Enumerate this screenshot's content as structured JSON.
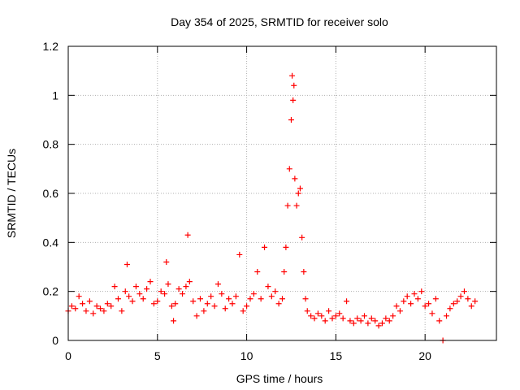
{
  "chart_data": {
    "type": "scatter",
    "title": "Day 354 of 2025, SRMTID for receiver solo",
    "xlabel": "GPS time / hours",
    "ylabel": "SRMTID / TECUs",
    "xlim": [
      0,
      24
    ],
    "ylim": [
      0,
      1.2
    ],
    "xticks": [
      0,
      5,
      10,
      15,
      20
    ],
    "xtick_labels": [
      "0",
      "5",
      "10",
      "15",
      "20"
    ],
    "yticks": [
      0,
      0.2,
      0.4,
      0.6,
      0.8,
      1.0,
      1.2
    ],
    "ytick_labels": [
      "0",
      "0.2",
      "0.4",
      "0.6",
      "0.8",
      "1",
      "1.2"
    ],
    "grid": true,
    "marker": "+",
    "color": "#ff0000",
    "series": [
      {
        "name": "SRMTID",
        "x": [
          0.0,
          0.2,
          0.4,
          0.6,
          0.8,
          1.0,
          1.2,
          1.4,
          1.6,
          1.8,
          2.0,
          2.2,
          2.4,
          2.6,
          2.8,
          3.0,
          3.2,
          3.3,
          3.4,
          3.6,
          3.8,
          4.0,
          4.2,
          4.4,
          4.6,
          4.8,
          5.0,
          5.2,
          5.4,
          5.5,
          5.6,
          5.8,
          5.9,
          6.0,
          6.2,
          6.4,
          6.6,
          6.7,
          6.8,
          7.0,
          7.2,
          7.4,
          7.6,
          7.8,
          8.0,
          8.2,
          8.4,
          8.6,
          8.8,
          9.0,
          9.2,
          9.4,
          9.6,
          9.8,
          10.0,
          10.2,
          10.4,
          10.6,
          10.8,
          11.0,
          11.2,
          11.4,
          11.6,
          11.8,
          12.0,
          12.1,
          12.2,
          12.3,
          12.4,
          12.5,
          12.55,
          12.6,
          12.65,
          12.7,
          12.8,
          12.9,
          13.0,
          13.1,
          13.2,
          13.3,
          13.4,
          13.6,
          13.8,
          14.0,
          14.2,
          14.4,
          14.6,
          14.8,
          15.0,
          15.2,
          15.4,
          15.6,
          15.8,
          16.0,
          16.2,
          16.4,
          16.6,
          16.8,
          17.0,
          17.2,
          17.4,
          17.6,
          17.8,
          18.0,
          18.2,
          18.4,
          18.6,
          18.8,
          19.0,
          19.2,
          19.4,
          19.6,
          19.8,
          20.0,
          20.2,
          20.4,
          20.6,
          20.8,
          21.0,
          21.2,
          21.4,
          21.6,
          21.8,
          22.0,
          22.2,
          22.4,
          22.6,
          22.8
        ],
        "y": [
          0.12,
          0.14,
          0.13,
          0.18,
          0.15,
          0.12,
          0.16,
          0.11,
          0.14,
          0.13,
          0.12,
          0.15,
          0.14,
          0.22,
          0.17,
          0.12,
          0.2,
          0.31,
          0.18,
          0.16,
          0.22,
          0.19,
          0.17,
          0.21,
          0.24,
          0.15,
          0.16,
          0.2,
          0.19,
          0.32,
          0.23,
          0.14,
          0.08,
          0.15,
          0.21,
          0.19,
          0.22,
          0.43,
          0.24,
          0.16,
          0.1,
          0.17,
          0.12,
          0.15,
          0.18,
          0.14,
          0.23,
          0.19,
          0.13,
          0.17,
          0.15,
          0.18,
          0.35,
          0.12,
          0.14,
          0.17,
          0.19,
          0.28,
          0.17,
          0.38,
          0.22,
          0.18,
          0.2,
          0.15,
          0.17,
          0.28,
          0.38,
          0.55,
          0.7,
          0.9,
          1.08,
          0.98,
          1.04,
          0.66,
          0.55,
          0.6,
          0.62,
          0.42,
          0.28,
          0.17,
          0.12,
          0.1,
          0.09,
          0.11,
          0.1,
          0.08,
          0.12,
          0.09,
          0.1,
          0.11,
          0.09,
          0.16,
          0.08,
          0.07,
          0.09,
          0.08,
          0.1,
          0.07,
          0.09,
          0.08,
          0.06,
          0.07,
          0.09,
          0.08,
          0.1,
          0.14,
          0.12,
          0.16,
          0.18,
          0.15,
          0.19,
          0.17,
          0.2,
          0.14,
          0.15,
          0.11,
          0.17,
          0.08,
          0.0,
          0.1,
          0.13,
          0.15,
          0.16,
          0.18,
          0.2,
          0.17,
          0.14,
          0.16
        ]
      }
    ]
  }
}
